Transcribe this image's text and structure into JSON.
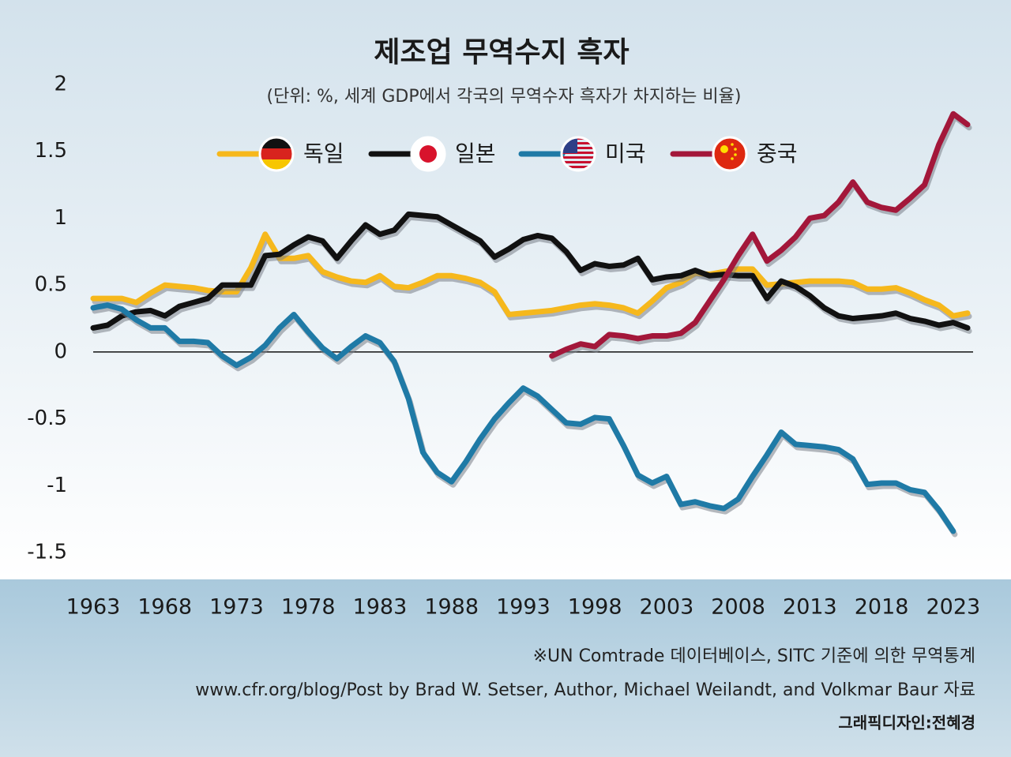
{
  "chart_data": {
    "type": "line",
    "title": "제조업 무역수지 흑자",
    "subtitle": "(단위: %, 세계 GDP에서 각국의 무역수자 흑자가 차지하는 비율)",
    "source": "※UN Comtrade 데이터베이스, SITC 기준에 의한 무역통계",
    "source2": "www.cfr.org/blog/Post by Brad W. Setser, Author, Michael Weilandt, and Volkmar Baur 자료",
    "credit": "그래픽디자인:전혜경",
    "x": [
      1963,
      1964,
      1965,
      1966,
      1967,
      1968,
      1969,
      1970,
      1971,
      1972,
      1973,
      1974,
      1975,
      1976,
      1977,
      1978,
      1979,
      1980,
      1981,
      1982,
      1983,
      1984,
      1985,
      1986,
      1987,
      1988,
      1989,
      1990,
      1991,
      1992,
      1993,
      1994,
      1995,
      1996,
      1997,
      1998,
      1999,
      2000,
      2001,
      2002,
      2003,
      2004,
      2005,
      2006,
      2007,
      2008,
      2009,
      2010,
      2011,
      2012,
      2013,
      2014,
      2015,
      2016,
      2017,
      2018,
      2019,
      2020,
      2021,
      2022,
      2023,
      2024
    ],
    "xlim": [
      1963,
      2024
    ],
    "xticks": [
      1963,
      1968,
      1973,
      1978,
      1983,
      1988,
      1993,
      1998,
      2003,
      2008,
      2013,
      2018,
      2023
    ],
    "ylim": [
      -1.7,
      2.1
    ],
    "yticks": [
      2,
      1.5,
      1,
      0.5,
      0,
      -0.5,
      -1,
      -1.5
    ],
    "zero_line": true,
    "series": [
      {
        "name": "독일",
        "color": "#f6b81c",
        "values": [
          0.4,
          0.4,
          0.4,
          0.37,
          0.44,
          0.5,
          0.49,
          0.48,
          0.46,
          0.45,
          0.45,
          0.63,
          0.88,
          0.7,
          0.7,
          0.72,
          0.6,
          0.56,
          0.53,
          0.52,
          0.57,
          0.49,
          0.48,
          0.52,
          0.57,
          0.57,
          0.55,
          0.52,
          0.45,
          0.28,
          0.29,
          0.3,
          0.31,
          0.33,
          0.35,
          0.36,
          0.35,
          0.33,
          0.29,
          0.38,
          0.48,
          0.52,
          0.59,
          0.58,
          0.6,
          0.62,
          0.62,
          0.5,
          0.51,
          0.52,
          0.53,
          0.53,
          0.53,
          0.52,
          0.47,
          0.47,
          0.48,
          0.44,
          0.39,
          0.35,
          0.27,
          0.29
        ]
      },
      {
        "name": "일본",
        "color": "#111111",
        "values": [
          0.18,
          0.2,
          0.27,
          0.3,
          0.31,
          0.27,
          0.34,
          0.37,
          0.4,
          0.5,
          0.5,
          0.5,
          0.72,
          0.73,
          0.8,
          0.86,
          0.83,
          0.7,
          0.83,
          0.95,
          0.88,
          0.91,
          1.03,
          1.02,
          1.01,
          0.95,
          0.89,
          0.83,
          0.71,
          0.77,
          0.84,
          0.87,
          0.85,
          0.75,
          0.61,
          0.66,
          0.64,
          0.65,
          0.7,
          0.54,
          0.56,
          0.57,
          0.61,
          0.57,
          0.58,
          0.57,
          0.57,
          0.4,
          0.53,
          0.49,
          0.42,
          0.33,
          0.27,
          0.25,
          0.26,
          0.27,
          0.29,
          0.25,
          0.23,
          0.2,
          0.22,
          0.18
        ]
      },
      {
        "name": "미국",
        "color": "#1f7aa6",
        "values": [
          0.33,
          0.35,
          0.32,
          0.24,
          0.18,
          0.18,
          0.08,
          0.08,
          0.07,
          -0.03,
          -0.1,
          -0.04,
          0.05,
          0.18,
          0.28,
          0.15,
          0.03,
          -0.05,
          0.04,
          0.12,
          0.07,
          -0.07,
          -0.35,
          -0.75,
          -0.9,
          -0.97,
          -0.82,
          -0.65,
          -0.5,
          -0.38,
          -0.27,
          -0.33,
          -0.43,
          -0.53,
          -0.54,
          -0.49,
          -0.5,
          -0.7,
          -0.92,
          -0.98,
          -0.93,
          -1.14,
          -1.12,
          -1.15,
          -1.17,
          -1.1,
          -0.93,
          -0.77,
          -0.6,
          -0.69,
          -0.7,
          -0.71,
          -0.73,
          -0.8,
          -0.99,
          -0.98,
          -0.98,
          -1.03,
          -1.05,
          -1.18,
          -1.34,
          null
        ]
      },
      {
        "name": "중국",
        "color": "#a3173a",
        "values": [
          null,
          null,
          null,
          null,
          null,
          null,
          null,
          null,
          null,
          null,
          null,
          null,
          null,
          null,
          null,
          null,
          null,
          null,
          null,
          null,
          null,
          null,
          null,
          null,
          null,
          null,
          null,
          null,
          null,
          null,
          null,
          null,
          -0.03,
          0.02,
          0.06,
          0.04,
          0.13,
          0.12,
          0.1,
          0.12,
          0.12,
          0.14,
          0.22,
          0.38,
          0.54,
          0.72,
          0.88,
          0.68,
          0.76,
          0.86,
          1.0,
          1.02,
          1.12,
          1.27,
          1.12,
          1.08,
          1.06,
          1.15,
          1.25,
          1.55,
          1.78,
          1.7
        ]
      }
    ]
  }
}
